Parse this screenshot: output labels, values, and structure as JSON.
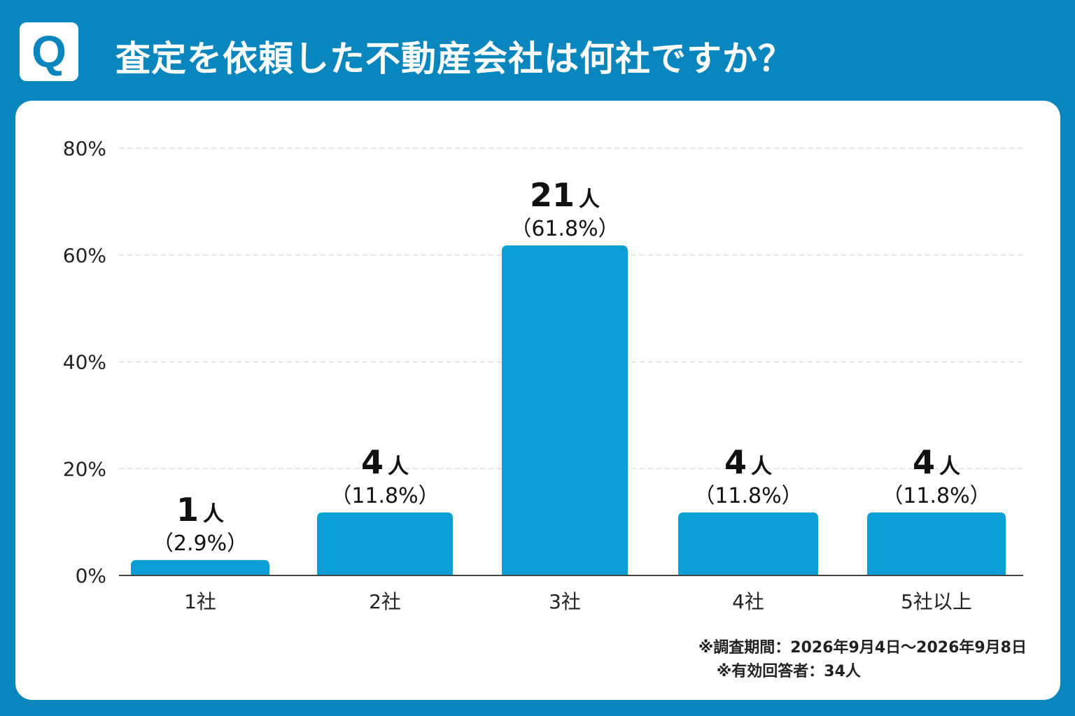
{
  "header": {
    "badge": "Q",
    "title": "査定を依頼した不動産会社は何社ですか？"
  },
  "notes": {
    "period": "※調査期間：2026年9月4日〜2026年9月8日",
    "respondents": "※有効回答者：34人"
  },
  "colors": {
    "background": "#0a86bf",
    "bar": "#0b9ed4",
    "text": "#222222"
  },
  "chart_data": {
    "type": "bar",
    "categories": [
      "1社",
      "2社",
      "3社",
      "4社",
      "5社以上"
    ],
    "values": [
      2.9,
      11.8,
      61.8,
      11.8,
      11.8
    ],
    "counts": [
      "1",
      "4",
      "21",
      "4",
      "4"
    ],
    "count_unit": "人",
    "percent_labels": [
      "（2.9%）",
      "（11.8%）",
      "（61.8%）",
      "（11.8%）",
      "（11.8%）"
    ],
    "yticks": [
      "0%",
      "20%",
      "40%",
      "60%",
      "80%"
    ],
    "ylim": [
      0,
      80
    ],
    "grid": true
  }
}
